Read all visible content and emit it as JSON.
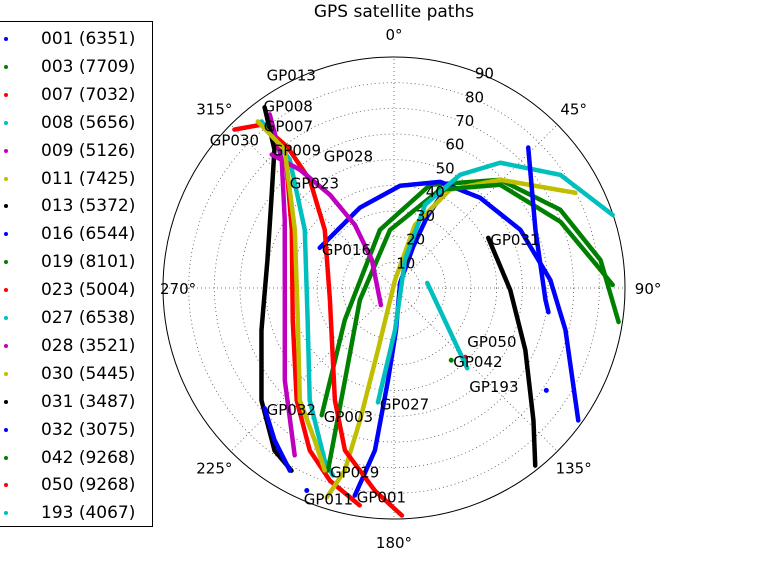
{
  "chart_data": {
    "type": "scatter",
    "subtype": "polar",
    "title": "GPS satellite paths",
    "angular_axis": {
      "direction": "clockwise",
      "zero": "top",
      "tick_labels": [
        "0°",
        "45°",
        "90°",
        "135°",
        "180°",
        "225°",
        "270°",
        "315°"
      ]
    },
    "radial_axis": {
      "range": [
        0,
        90
      ],
      "tick_labels": [
        "10",
        "20",
        "30",
        "40",
        "50",
        "60",
        "70",
        "80",
        "90"
      ]
    },
    "grid": true,
    "legend": "left",
    "series": [
      {
        "name": "001 (6351)",
        "label": "GP001",
        "color": "#0000ff",
        "segments": [
          [
            [
              190.7,
              82.3
            ],
            [
              186.7,
              63.7
            ],
            [
              183.7,
              36.0
            ],
            [
              177.3,
              16.5
            ],
            [
              50.2,
              3.1
            ],
            [
              24.9,
              17.7
            ],
            [
              24.9,
              30.6
            ],
            [
              27.7,
              44.6
            ]
          ]
        ]
      },
      {
        "name": "003 (7709)",
        "label": "GP003",
        "color": "#008000",
        "segments": [
          [
            [
              209.6,
              57.0
            ],
            [
              236.9,
              22.9
            ],
            [
              346.4,
              23.3
            ],
            [
              19.3,
              42.6
            ],
            [
              44.5,
              59.1
            ],
            [
              64.8,
              71.6
            ],
            [
              82.3,
              81.2
            ],
            [
              98.6,
              88.5
            ]
          ]
        ]
      },
      {
        "name": "007 (7032)",
        "label": "GP007",
        "color": "#ff0000",
        "segments": [
          [
            [
              321.0,
              81.9
            ],
            [
              314.8,
              87.6
            ]
          ],
          [
            [
              321.0,
              81.9
            ],
            [
              322.7,
              70.2
            ],
            [
              299.6,
              45.8
            ],
            [
              252.4,
              41.4
            ],
            [
              220.9,
              57.9
            ],
            [
              207.4,
              71.3
            ],
            [
              198.4,
              79.1
            ],
            [
              188.9,
              85.8
            ]
          ]
        ]
      },
      {
        "name": "008 (5656)",
        "label": "GP008",
        "color": "#00bfbf",
        "segments": [
          [
            [
              321.5,
              82.9
            ],
            [
              320.9,
              64.4
            ],
            [
              303.1,
              41.5
            ],
            [
              249.6,
              35.9
            ],
            [
              216.9,
              54.7
            ],
            [
              201.9,
              72.4
            ],
            [
              198.1,
              76.8
            ]
          ]
        ]
      },
      {
        "name": "009 (5126)",
        "label": "GP009",
        "color": "#bf00bf",
        "segments": [
          [
            [
              324.4,
              83.2
            ],
            [
              318.8,
              66.4
            ],
            [
              302.0,
              50.2
            ],
            [
              263.7,
              42.8
            ],
            [
              229.8,
              55.7
            ],
            [
              210.7,
              75.8
            ]
          ]
        ]
      },
      {
        "name": "011 (7425)",
        "label": "GP011",
        "color": "#bfbf00",
        "segments": [
          [
            [
              197.8,
              85.7
            ],
            [
              195.1,
              73.6
            ],
            [
              194.4,
              53.2
            ],
            [
              194.5,
              25.0
            ],
            [
              7.1,
              3.1
            ],
            [
              18.4,
              25.9
            ],
            [
              29.7,
              44.1
            ],
            [
              44.5,
              59.1
            ],
            [
              62.3,
              79.8
            ]
          ]
        ]
      },
      {
        "name": "013 (5372)",
        "label": "GP013",
        "color": "#000000",
        "segments": [
          [
            [
              324.4,
              86.6
            ],
            [
              319.2,
              71.3
            ],
            [
              305.8,
              58.9
            ],
            [
              282.5,
              50.5
            ],
            [
              252.3,
              54.2
            ],
            [
              229.7,
              67.7
            ],
            [
              216.3,
              78.6
            ],
            [
              209.3,
              81.6
            ]
          ]
        ]
      },
      {
        "name": "016 (6544)",
        "label": "GP016",
        "color": "#0000ff",
        "segments": [
          [
            [
              298.4,
              32.9
            ],
            [
              337.0,
              34.0
            ],
            [
              3.4,
              39.9
            ],
            [
              23.5,
              45.1
            ],
            [
              43.7,
              48.6
            ],
            [
              65.3,
              54.2
            ],
            [
              87.1,
              61.0
            ],
            [
              103.8,
              68.8
            ],
            [
              125.7,
              88.4
            ]
          ]
        ]
      },
      {
        "name": "019 (8101)",
        "label": "GP019",
        "color": "#008000",
        "segments": [
          [
            [
              199.9,
              75.6
            ],
            [
              208.0,
              40.7
            ],
            [
              250.6,
              14.1
            ],
            [
              356.1,
              22.7
            ],
            [
              25.1,
              42.3
            ],
            [
              45.8,
              57.7
            ],
            [
              68.3,
              69.8
            ],
            [
              85.0,
              80.8
            ],
            [
              89.2,
              85.2
            ]
          ]
        ]
      },
      {
        "name": "023 (5004)",
        "label": "GP023",
        "color": "#ff0000",
        "segments": [
          [
            [
              322.9,
              68.6
            ],
            [
              322.1,
              53.4
            ],
            [
              310.0,
              35.2
            ],
            [
              259.4,
              25.4
            ],
            [
              207.8,
              49.4
            ],
            [
              196.8,
              66.1
            ],
            [
              185.4,
              79.3
            ],
            [
              178.0,
              88.7
            ]
          ]
        ]
      },
      {
        "name": "027 (6538)",
        "label": "GP027",
        "color": "#00bfbf",
        "segments": [
          [
            [
              188.0,
              45.0
            ],
            [
              178.6,
              16.4
            ],
            [
              21.4,
              11.8
            ],
            [
              20.5,
              34.7
            ],
            [
              30.3,
              51.1
            ],
            [
              40.3,
              64.0
            ],
            [
              55.8,
              78.4
            ],
            [
              71.5,
              89.8
            ]
          ]
        ]
      },
      {
        "name": "028 (3521)",
        "label": "GP028",
        "color": "#bf00bf",
        "segments": [
          [
            [
              317.5,
              70.5
            ],
            [
              321.5,
              58.9
            ],
            [
              325.5,
              44.1
            ],
            [
              328.2,
              28.9
            ],
            [
              321.8,
              13.9
            ],
            [
              217.4,
              8.4
            ]
          ]
        ]
      },
      {
        "name": "030 (5445)",
        "label": "GP030",
        "color": "#bfbf00",
        "segments": [
          [
            [
              320.7,
              83.8
            ],
            [
              321.7,
              68.7
            ],
            [
              300.4,
              44.8
            ],
            [
              251.6,
              39.5
            ],
            [
              220.0,
              57.1
            ],
            [
              207.5,
              66.9
            ],
            [
              200.8,
              76.0
            ]
          ]
        ]
      },
      {
        "name": "031 (3487)",
        "label": "GP031",
        "color": "#000000",
        "segments": [
          [
            [
              62.0,
              41.6
            ],
            [
              91.0,
              45.3
            ],
            [
              115.3,
              56.6
            ],
            [
              133.5,
              74.9
            ],
            [
              141.5,
              88.4
            ]
          ]
        ]
      },
      {
        "name": "032 (3075)",
        "label": "GP032",
        "color": "#0000ff",
        "segments": [
          [
            [
              227.1,
              68.8
            ],
            [
              218.1,
              75.4
            ],
            [
              209.7,
              81.9
            ]
          ],
          [
            [
              203.3,
              85.9
            ]
          ],
          [
            [
              43.7,
              75.7
            ],
            [
              67.6,
              59.6
            ],
            [
              94.5,
              59.2
            ],
            [
              98.9,
              60.9
            ]
          ],
          [
            [
              123.9,
              71.5
            ]
          ]
        ]
      },
      {
        "name": "042 (9268)",
        "label": "GP042",
        "color": "#008000",
        "segments": [
          [
            [
              141.6,
              35.9
            ]
          ]
        ]
      },
      {
        "name": "050 (9268)",
        "label": "GP050",
        "color": "#ff0000",
        "segments": [
          [
            [
              134.2,
              38.7
            ]
          ]
        ]
      },
      {
        "name": "193 (4067)",
        "label": "GP193",
        "color": "#00bfbf",
        "segments": [
          [
            [
              137.6,
              42.3
            ],
            [
              81.4,
              13.1
            ]
          ]
        ]
      }
    ]
  }
}
